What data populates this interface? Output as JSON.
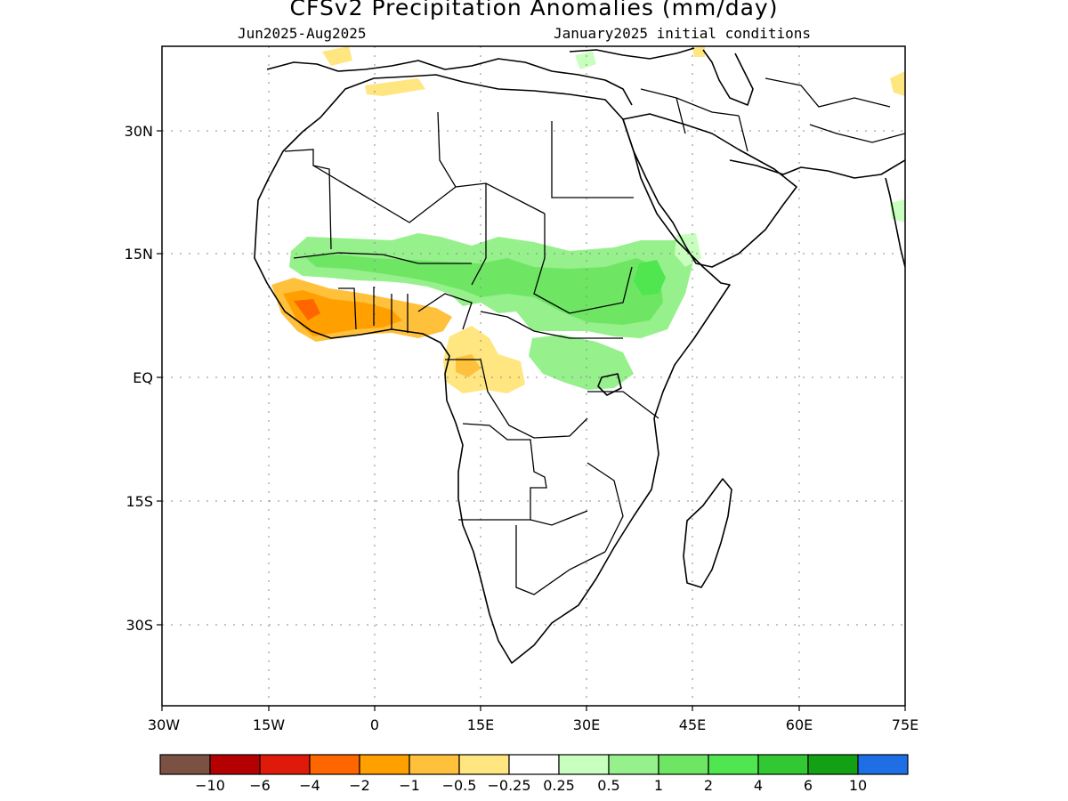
{
  "title": "CFSv2 Precipitation Anomalies (mm/day)",
  "period": "Jun2025-Aug2025",
  "init": "January2025 initial conditions",
  "lat_labels": [
    "30N",
    "15N",
    "EQ",
    "15S",
    "30S"
  ],
  "lon_labels": [
    "30W",
    "15W",
    "0",
    "15E",
    "30E",
    "45E",
    "60E",
    "75E"
  ],
  "colorbar": {
    "colors": [
      "#7b5144",
      "#b40000",
      "#e01a0a",
      "#ff6600",
      "#ffa000",
      "#ffc03c",
      "#ffe680",
      "#ffffff",
      "#c8ffbe",
      "#96f08c",
      "#6ee664",
      "#50e650",
      "#32c832",
      "#14a014",
      "#1e6ee6"
    ],
    "labels": [
      "-10",
      "-6",
      "-4",
      "-2",
      "-1",
      "-0.5",
      "-0.25",
      "0.25",
      "0.5",
      "1",
      "2",
      "4",
      "6",
      "10"
    ]
  }
}
